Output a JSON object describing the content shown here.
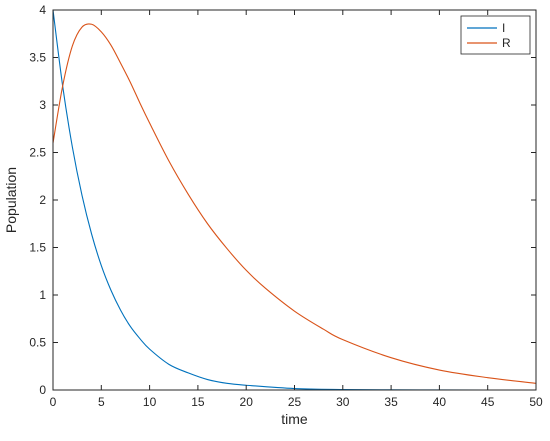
{
  "chart_data": {
    "type": "line",
    "title": "",
    "xlabel": "time",
    "ylabel": "Population",
    "xlim": [
      0,
      50
    ],
    "ylim": [
      0,
      4
    ],
    "x_ticks": [
      "0",
      "5",
      "10",
      "15",
      "20",
      "25",
      "30",
      "35",
      "40",
      "45",
      "50"
    ],
    "y_ticks": [
      "0",
      "0.5",
      "1",
      "1.5",
      "2",
      "2.5",
      "3",
      "3.5",
      "4"
    ],
    "grid": false,
    "legend_position": "top-right",
    "series": [
      {
        "name": "I",
        "color": "#0072BD",
        "x": [
          0,
          1,
          2,
          3,
          4,
          5,
          6,
          7,
          8,
          9,
          10,
          12,
          14,
          16,
          18,
          20,
          25,
          30,
          35,
          40,
          45,
          50
        ],
        "y": [
          4.0,
          3.2,
          2.56,
          2.05,
          1.64,
          1.31,
          1.05,
          0.84,
          0.67,
          0.54,
          0.43,
          0.27,
          0.18,
          0.11,
          0.07,
          0.05,
          0.015,
          0.005,
          0.002,
          0.001,
          0.0,
          0.0
        ]
      },
      {
        "name": "R",
        "color": "#D95319",
        "x": [
          0,
          1,
          2,
          3,
          4,
          5,
          6,
          7,
          8,
          9,
          10,
          12,
          14,
          16,
          18,
          20,
          22,
          25,
          28,
          30,
          35,
          40,
          45,
          50
        ],
        "y": [
          2.6,
          3.2,
          3.62,
          3.82,
          3.85,
          3.77,
          3.63,
          3.44,
          3.24,
          3.02,
          2.81,
          2.41,
          2.06,
          1.75,
          1.49,
          1.26,
          1.07,
          0.83,
          0.64,
          0.53,
          0.34,
          0.21,
          0.13,
          0.07
        ]
      }
    ]
  }
}
